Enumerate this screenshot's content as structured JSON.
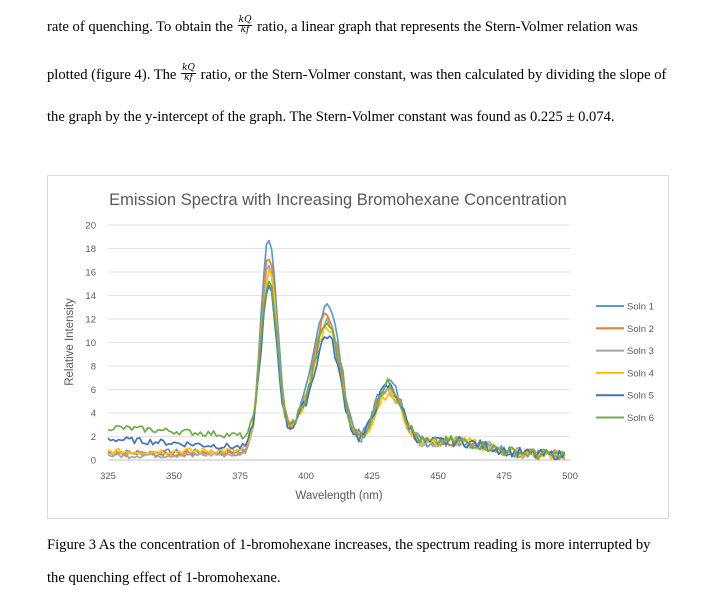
{
  "paragraph": {
    "line1_a": "rate of quenching. To obtain the",
    "frac_num": "kQ",
    "frac_den": "kf",
    "line1_b": "ratio, a linear graph that represents the Stern-Volmer relation was",
    "line2_a": "plotted (figure 4). The",
    "line2_b": "ratio, or the Stern-Volmer constant, was then calculated by dividing the slope of",
    "line3": "the graph by the y-intercept of the graph. The Stern-Volmer constant was found as 0.225 ± 0.074."
  },
  "caption": {
    "line1": "Figure 3 As the concentration of 1-bromohexane increases, the spectrum reading is more interrupted by",
    "line2": "the quenching effect of 1-bromohexane."
  },
  "chart_data": {
    "type": "line",
    "title": "Emission Spectra with Increasing Bromohexane Concentration",
    "xlabel": "Wavelength (nm)",
    "ylabel": "Relative Intensity",
    "xlim": [
      325,
      500
    ],
    "ylim": [
      0,
      20
    ],
    "xticks": [
      325,
      350,
      375,
      400,
      425,
      450,
      475,
      500
    ],
    "yticks": [
      0,
      2,
      4,
      6,
      8,
      10,
      12,
      14,
      16,
      18,
      20
    ],
    "grid": "horizontal",
    "legend": "right",
    "colors": [
      "#5b9bd5",
      "#ed7d31",
      "#a5a5a5",
      "#ffc000",
      "#4472c4",
      "#70ad47"
    ],
    "peaks": {
      "x": [
        386,
        408,
        431
      ],
      "note_free": true
    },
    "series": [
      {
        "name": "Soln 1",
        "baseline": 0.6,
        "peak1": 18.4,
        "peak2": 13.0,
        "peak3": 6.0
      },
      {
        "name": "Soln 2",
        "baseline": 0.5,
        "peak1": 17.0,
        "peak2": 12.0,
        "peak3": 5.4
      },
      {
        "name": "Soln 3",
        "baseline": 0.4,
        "peak1": 16.3,
        "peak2": 11.4,
        "peak3": 5.2
      },
      {
        "name": "Soln 4",
        "baseline": 0.7,
        "peak1": 15.6,
        "peak2": 11.0,
        "peak3": 5.0
      },
      {
        "name": "Soln 5",
        "baseline": 1.8,
        "peak1": 14.2,
        "peak2": 10.2,
        "peak3": 5.6
      },
      {
        "name": "Soln 6",
        "baseline": 2.8,
        "peak1": 15.0,
        "peak2": 11.2,
        "peak3": 5.8
      }
    ]
  }
}
